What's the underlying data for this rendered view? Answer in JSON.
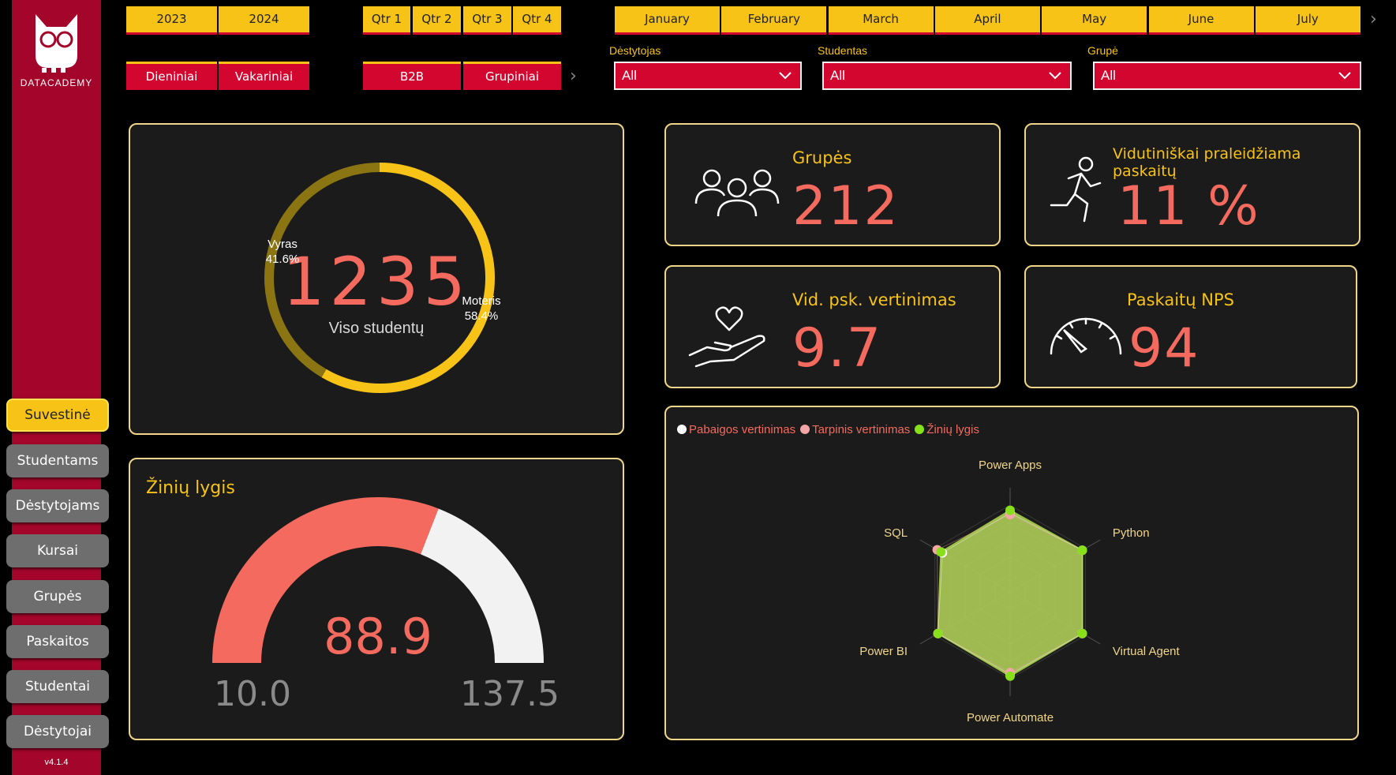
{
  "brand": {
    "wordmark": "DATACADEMY",
    "version": "v4.1.4"
  },
  "colors": {
    "yellow": "#f7c316",
    "red": "#d3062f",
    "salmon": "#f56a5e",
    "sidebar": "#a3062a",
    "card_bg": "#1b1b1b"
  },
  "nav": {
    "items": [
      {
        "label": "Suvestinė",
        "active": true
      },
      {
        "label": "Studentams"
      },
      {
        "label": "Dėstytojams"
      },
      {
        "label": "Kursai"
      },
      {
        "label": "Grupės"
      },
      {
        "label": "Paskaitos"
      },
      {
        "label": "Studentai"
      },
      {
        "label": "Dėstytojai"
      }
    ]
  },
  "slicers": {
    "years": [
      "2023",
      "2024"
    ],
    "quarters": [
      "Qtr 1",
      "Qtr 2",
      "Qtr 3",
      "Qtr 4"
    ],
    "months": [
      "January",
      "February",
      "March",
      "April",
      "May",
      "June",
      "July"
    ],
    "schedule": [
      "Dieniniai",
      "Vakariniai"
    ],
    "type": [
      "B2B",
      "Grupiniai"
    ]
  },
  "filters": {
    "lecturer": {
      "label": "Dėstytojas",
      "value": "All"
    },
    "student": {
      "label": "Studentas",
      "value": "All"
    },
    "group": {
      "label": "Grupė",
      "value": "All"
    }
  },
  "students": {
    "total": "1235",
    "caption": "Viso studentų",
    "male": {
      "label": "Vyras",
      "pct": "41.6%",
      "value": 41.6,
      "color": "#8b7513"
    },
    "female": {
      "label": "Moteris",
      "pct": "58.4%",
      "value": 58.4,
      "color": "#f7c316"
    }
  },
  "knowledge": {
    "title": "Žinių lygis",
    "value": "88.9",
    "min": "10.0",
    "max": "137.5",
    "num": {
      "value": 88.9,
      "min": 10.0,
      "max": 137.5
    }
  },
  "kpis": {
    "groups": {
      "title": "Grupės",
      "value": "212",
      "icon": "people-icon"
    },
    "absence": {
      "title": "Vidutiniškai praleidžiama paskaitų",
      "value": "11 %",
      "icon": "running-person-icon"
    },
    "rating": {
      "title": "Vid. psk. vertinimas",
      "value": "9.7",
      "icon": "heart-hand-icon"
    },
    "nps": {
      "title": "Paskaitų NPS",
      "value": "94",
      "icon": "gauge-icon"
    }
  },
  "chart_data": {
    "type": "radar",
    "categories": [
      "Power Apps",
      "Python",
      "Virtual Agent",
      "Power Automate",
      "Power BI",
      "SQL"
    ],
    "series": [
      {
        "name": "Pabaigos vertinimas",
        "color": "#ffffff",
        "values": [
          9.1,
          9.6,
          9.6,
          9.5,
          9.6,
          9.0
        ]
      },
      {
        "name": "Tarpinis vertinimas",
        "color": "#f4a6a6",
        "values": [
          8.9,
          9.6,
          9.6,
          9.3,
          9.6,
          9.7
        ]
      },
      {
        "name": "Žinių lygis",
        "color": "#88e01a",
        "values": [
          9.4,
          9.6,
          9.6,
          9.7,
          9.6,
          9.2
        ]
      }
    ],
    "range": [
      0,
      10
    ]
  }
}
